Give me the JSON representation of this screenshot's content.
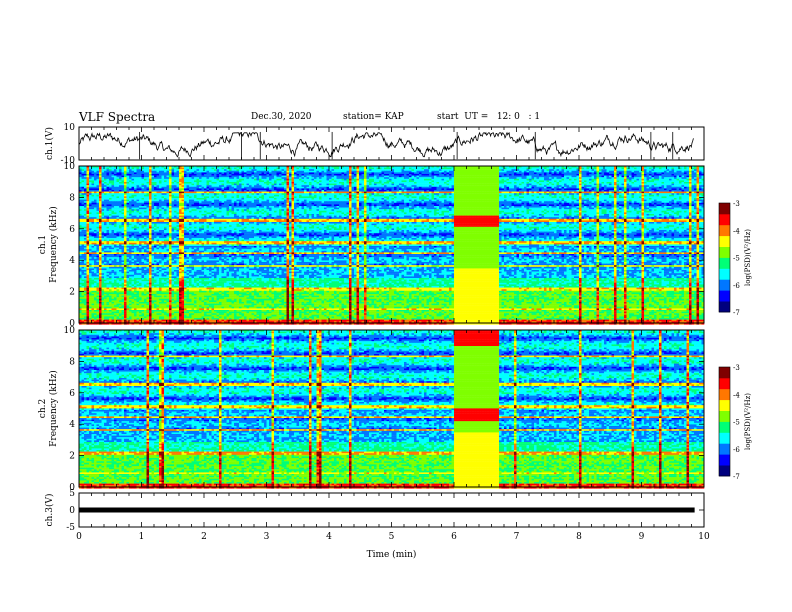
{
  "header": {
    "title": "VLF Spectra",
    "date": "Dec.30, 2020",
    "station": "station= KAP",
    "start": "start  UT =   12: 0   : 1"
  },
  "colors": {
    "spectrogram_scale": [
      "#00007f",
      "#0000ff",
      "#0077ff",
      "#00ffff",
      "#00ff77",
      "#7fff00",
      "#ffff00",
      "#ff7700",
      "#ff0000",
      "#7f0000"
    ],
    "waveform": "#000000",
    "background": "#ffffff"
  },
  "chart_data": [
    {
      "type": "line",
      "panel": "ch1-waveform",
      "ylabel": "ch.1(V)",
      "ylim": [
        -10,
        10
      ],
      "ytick_labels": [
        "10",
        "-10"
      ],
      "xlim": [
        0,
        10
      ],
      "note": "noisy low-amplitude trace mostly between -5 and 5 V with occasional spikes"
    },
    {
      "type": "heatmap",
      "panel": "ch1-spectrogram",
      "ylabel": "ch.1 Frequency (kHz)",
      "ylim": [
        0,
        10
      ],
      "ytick_labels": [
        "0",
        "2",
        "4",
        "6",
        "8",
        "10"
      ],
      "xlim": [
        0,
        10
      ],
      "colorbar": {
        "label": "log(PSD)(V²/Hz)",
        "range": [
          -7,
          -3
        ],
        "tick_labels": [
          "-3",
          "-4",
          "-5",
          "-6",
          "-7"
        ]
      },
      "enhanced_interval_min": [
        6.0,
        6.7
      ]
    },
    {
      "type": "heatmap",
      "panel": "ch2-spectrogram",
      "ylabel": "ch.2 Frequency (kHz)",
      "ylim": [
        0,
        10
      ],
      "ytick_labels": [
        "0",
        "2",
        "4",
        "6",
        "8",
        "10"
      ],
      "xlim": [
        0,
        10
      ],
      "colorbar": {
        "label": "log(PSD)(V²/Hz)",
        "range": [
          -7,
          -3
        ],
        "tick_labels": [
          "-3",
          "-4",
          "-5",
          "-6",
          "-7"
        ]
      },
      "enhanced_interval_min": [
        6.0,
        6.7
      ]
    },
    {
      "type": "line",
      "panel": "ch3-waveform",
      "ylabel": "ch.3(V)",
      "ylim": [
        -5,
        5
      ],
      "ytick_labels": [
        "5",
        "0",
        "-5"
      ],
      "xlim": [
        0,
        10
      ],
      "xlabel": "Time  (min)",
      "xtick_labels": [
        "0",
        "1",
        "2",
        "3",
        "4",
        "5",
        "6",
        "7",
        "8",
        "9",
        "10"
      ],
      "constant_value": 0
    }
  ]
}
